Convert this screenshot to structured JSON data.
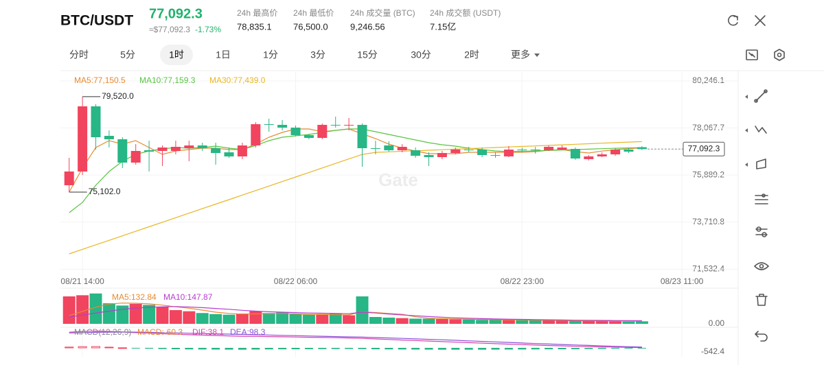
{
  "header": {
    "pair": "BTC/USDT",
    "price": "77,092.3",
    "approx": "≈$77,092.3",
    "change": "-1.73%",
    "stats": [
      {
        "label": "24h 最高价",
        "value": "78,835.1"
      },
      {
        "label": "24h 最低价",
        "value": "76,500.0"
      },
      {
        "label": "24h 成交量 (BTC)",
        "value": "9,246.56"
      },
      {
        "label": "24h 成交额 (USDT)",
        "value": "7.15亿"
      }
    ]
  },
  "tabs": [
    "分时",
    "5分",
    "1时",
    "1日",
    "1分",
    "3分",
    "15分",
    "30分",
    "2时",
    "更多"
  ],
  "active_tab": "1时",
  "chart_data": [
    {
      "type": "candlestick",
      "x": [
        "08/21 13:00",
        "08/21 14:00",
        "08/21 15:00",
        "08/21 16:00",
        "08/21 17:00",
        "08/21 18:00",
        "08/21 19:00",
        "08/21 20:00",
        "08/21 21:00",
        "08/21 22:00",
        "08/21 23:00",
        "08/22 00:00",
        "08/22 01:00",
        "08/22 02:00",
        "08/22 03:00",
        "08/22 04:00",
        "08/22 05:00",
        "08/22 06:00",
        "08/22 07:00",
        "08/22 08:00",
        "08/22 09:00",
        "08/22 10:00",
        "08/22 11:00",
        "08/22 12:00",
        "08/22 13:00",
        "08/22 14:00",
        "08/22 15:00",
        "08/22 16:00",
        "08/22 17:00",
        "08/22 18:00",
        "08/22 19:00",
        "08/22 20:00",
        "08/22 21:00",
        "08/22 22:00",
        "08/22 23:00",
        "08/23 00:00",
        "08/23 01:00",
        "08/23 02:00",
        "08/23 03:00",
        "08/23 04:00",
        "08/23 05:00",
        "08/23 06:00",
        "08/23 07:00",
        "08/23 08:00"
      ],
      "open": [
        75419,
        76054,
        79071,
        77705,
        77547,
        76467,
        77038,
        77007,
        77007,
        77134,
        77261,
        77134,
        76943,
        76753,
        77261,
        78245,
        78214,
        78087,
        77737,
        77610,
        78214,
        78182,
        78214,
        77134,
        77261,
        77038,
        77038,
        76816,
        76721,
        76911,
        77070,
        77070,
        76816,
        76753,
        77070,
        77070,
        77038,
        77070,
        77102,
        76626,
        76753,
        76848,
        77070,
        77180
      ],
      "high": [
        76689,
        79520.0,
        79166,
        77959,
        77642,
        77324,
        77483,
        77261,
        77483,
        77483,
        77388,
        77388,
        77165,
        77388,
        78340,
        78499,
        78436,
        78182,
        77801,
        78277,
        78595,
        78531,
        78277,
        77483,
        77451,
        77324,
        77165,
        76943,
        77007,
        77165,
        77197,
        77165,
        76943,
        77229,
        77165,
        77197,
        77261,
        77261,
        77165,
        76816,
        76943,
        77134,
        77165,
        77230
      ],
      "low": [
        75102.0,
        75895,
        77070,
        77165,
        76213,
        76372,
        76054,
        76308,
        76848,
        76530,
        77007,
        76372,
        76689,
        76626,
        77165,
        77896,
        77959,
        77673,
        77547,
        77547,
        78087,
        77959,
        76276,
        76848,
        76975,
        76943,
        76689,
        76308,
        76626,
        76848,
        76943,
        76721,
        76689,
        76721,
        76943,
        76880,
        77007,
        77038,
        76594,
        76562,
        76721,
        76784,
        76911,
        77050
      ],
      "close": [
        76054,
        79071,
        77642,
        77547,
        76467,
        77007,
        76975,
        77165,
        77197,
        77261,
        77134,
        76911,
        76753,
        77261,
        78245,
        78214,
        78087,
        77737,
        77610,
        78214,
        78182,
        78214,
        77134,
        77102,
        77038,
        77197,
        76784,
        76721,
        76911,
        77070,
        77038,
        76816,
        76784,
        77070,
        77038,
        77038,
        77197,
        77165,
        76657,
        76753,
        76848,
        77070,
        76975,
        77092.3
      ],
      "up_color": "#f1445e",
      "down_color": "#27b685",
      "series": [
        {
          "name": "MA5:77,150.5",
          "color": "#e88a2e",
          "values": [
            75101,
            76213,
            77165,
            77483,
            77324,
            77483,
            77165,
            76848,
            77007,
            77070,
            77134,
            77134,
            77070,
            77070,
            77324,
            77642,
            77864,
            78023,
            78023,
            77896,
            77959,
            78023,
            77801,
            77578,
            77324,
            77134,
            77007,
            76880,
            76880,
            76880,
            76943,
            76943,
            76943,
            76943,
            76943,
            76975,
            77038,
            77070,
            76975,
            76911,
            77000,
            77060,
            77110,
            77150.5
          ]
        },
        {
          "name": "MA10:77,159.3",
          "color": "#57c442",
          "values": [
            74148,
            74624,
            75419,
            76054,
            76530,
            76848,
            77007,
            77102,
            77165,
            77134,
            77165,
            77229,
            77134,
            77070,
            77261,
            77483,
            77642,
            77705,
            77769,
            77864,
            77959,
            78023,
            78023,
            77896,
            77769,
            77642,
            77515,
            77388,
            77292,
            77229,
            77134,
            77070,
            77007,
            76975,
            76990,
            77010,
            77030,
            77050,
            77070,
            77090,
            77110,
            77130,
            77145,
            77159.3
          ]
        },
        {
          "name": "MA30:77,439.0",
          "color": "#e8b623",
          "values": [
            72242,
            72451,
            72661,
            72870,
            73079,
            73288,
            73498,
            73707,
            73916,
            74126,
            74335,
            74544,
            74753,
            74963,
            75172,
            75381,
            75590,
            75800,
            76009,
            76218,
            76428,
            76637,
            76846,
            76940,
            76965,
            76990,
            77015,
            77040,
            77065,
            77090,
            77115,
            77140,
            77165,
            77190,
            77215,
            77240,
            77265,
            77290,
            77315,
            77340,
            77365,
            77390,
            77415,
            77439.0
          ]
        }
      ],
      "ylim": [
        71290,
        80659
      ],
      "yticks": [
        {
          "value": 80246.1,
          "label": "80,246.1"
        },
        {
          "value": 78067.7,
          "label": "78,067.7"
        },
        {
          "value": 75889.2,
          "label": "75,889.2"
        },
        {
          "value": 73710.8,
          "label": "73,710.8"
        },
        {
          "value": 71532.4,
          "label": "71,532.4"
        }
      ],
      "xticks": [
        "08/21 14:00",
        "08/22 06:00",
        "08/22 23:00",
        "08/23 11:00"
      ],
      "annotations": [
        {
          "value": 79520.0,
          "label": "79,520.0"
        },
        {
          "value": 75102.0,
          "label": "75,102.0"
        }
      ],
      "last_price": {
        "value": 77092.3,
        "label": "77,092.3"
      },
      "watermark": "Gate",
      "grid": true
    },
    {
      "type": "bar",
      "series": [
        {
          "values": [
            1320,
            1375,
            1460,
            990,
            880,
            960,
            910,
            825,
            660,
            605,
            520,
            470,
            440,
            495,
            605,
            520,
            550,
            470,
            440,
            470,
            495,
            410,
            1320,
            330,
            300,
            275,
            250,
            250,
            230,
            220,
            210,
            190,
            200,
            185,
            175,
            165,
            165,
            155,
            145,
            140,
            130,
            120,
            110,
            120
          ]
        },
        {
          "name": "MA5:132.84",
          "color": "#e88a2e",
          "values": [
            400,
            600,
            800,
            950,
            1000,
            990,
            960,
            900,
            820,
            750,
            660,
            560,
            500,
            470,
            480,
            490,
            500,
            480,
            460,
            450,
            440,
            430,
            580,
            540,
            500,
            460,
            340,
            270,
            250,
            240,
            225,
            210,
            200,
            195,
            190,
            180,
            170,
            160,
            155,
            150,
            145,
            140,
            135,
            132.84
          ]
        },
        {
          "name": "MA10:147.87",
          "color": "#b83ccf",
          "values": [
            330,
            420,
            520,
            610,
            700,
            760,
            800,
            820,
            830,
            810,
            780,
            740,
            700,
            650,
            610,
            580,
            560,
            540,
            520,
            510,
            500,
            490,
            560,
            520,
            470,
            430,
            390,
            350,
            320,
            290,
            270,
            250,
            235,
            225,
            215,
            205,
            195,
            185,
            175,
            170,
            165,
            160,
            155,
            147.87
          ]
        }
      ],
      "ylim": [
        0,
        1551
      ],
      "yticks": [
        {
          "value": 0,
          "label": "0.00"
        }
      ]
    },
    {
      "type": "bar",
      "title": "MACD(12,26,9)",
      "series": [
        {
          "name": "MACD:-60.3",
          "color": "#e88a2e",
          "values": [
            100,
            160,
            170,
            90,
            10,
            -60,
            -110,
            -150,
            -180,
            -200,
            -210,
            -220,
            -230,
            -240,
            -220,
            -200,
            -190,
            -180,
            -170,
            -160,
            -150,
            -140,
            -160,
            -180,
            -200,
            -210,
            -220,
            -230,
            -240,
            -240,
            -240,
            -240,
            -230,
            -220,
            -210,
            -200,
            -190,
            -180,
            -170,
            -150,
            -130,
            -105,
            -85,
            -60.3
          ]
        },
        {
          "name": "DIF:38.1",
          "color": "#d63fae",
          "values": [
            2050,
            2150,
            2200,
            2150,
            2080,
            2000,
            1920,
            1850,
            1780,
            1720,
            1670,
            1620,
            1570,
            1520,
            1500,
            1480,
            1450,
            1420,
            1390,
            1360,
            1330,
            1300,
            1240,
            1170,
            1100,
            1030,
            960,
            890,
            820,
            750,
            680,
            610,
            550,
            490,
            430,
            370,
            310,
            260,
            210,
            170,
            130,
            95,
            65,
            38.1
          ]
        },
        {
          "name": "DEA:98.3",
          "color": "#8d4fd8",
          "values": [
            1950,
            1990,
            2030,
            2060,
            2070,
            2060,
            2030,
            2000,
            1960,
            1920,
            1880,
            1840,
            1800,
            1760,
            1720,
            1680,
            1640,
            1600,
            1560,
            1520,
            1480,
            1440,
            1400,
            1350,
            1300,
            1240,
            1180,
            1120,
            1060,
            990,
            920,
            850,
            780,
            710,
            640,
            570,
            500,
            440,
            380,
            320,
            260,
            200,
            150,
            98.3
          ]
        }
      ],
      "ylim": [
        -1170,
        2430
      ],
      "yticks": [
        -542.4
      ]
    }
  ]
}
